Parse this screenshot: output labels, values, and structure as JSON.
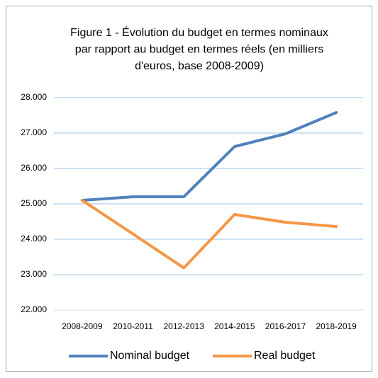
{
  "chart_data": {
    "type": "line",
    "title": [
      "Figure 1 - Évolution du budget en termes nominaux",
      "par rapport au budget en termes réels (en milliers",
      "d'euros, base 2008-2009)"
    ],
    "categories": [
      "2008-2009",
      "2010-2011",
      "2012-2013",
      "2014-2015",
      "2016-2017",
      "2018-2019"
    ],
    "series": [
      {
        "name": "Nominal budget",
        "color": "#4f81bd",
        "values": [
          25100,
          25200,
          25200,
          26620,
          26980,
          27580
        ]
      },
      {
        "name": "Real budget",
        "color": "#f79646",
        "values": [
          25100,
          24150,
          23190,
          24700,
          24480,
          24360
        ]
      }
    ],
    "ylim": [
      22000,
      28000
    ],
    "yticks": [
      {
        "value": 22000,
        "label": "22.000"
      },
      {
        "value": 23000,
        "label": "23.000"
      },
      {
        "value": 24000,
        "label": "24.000"
      },
      {
        "value": 25000,
        "label": "25.000"
      },
      {
        "value": 26000,
        "label": "26.000"
      },
      {
        "value": 27000,
        "label": "27.000"
      },
      {
        "value": 28000,
        "label": "28.000"
      }
    ],
    "grid": true,
    "legend": "bottom"
  }
}
